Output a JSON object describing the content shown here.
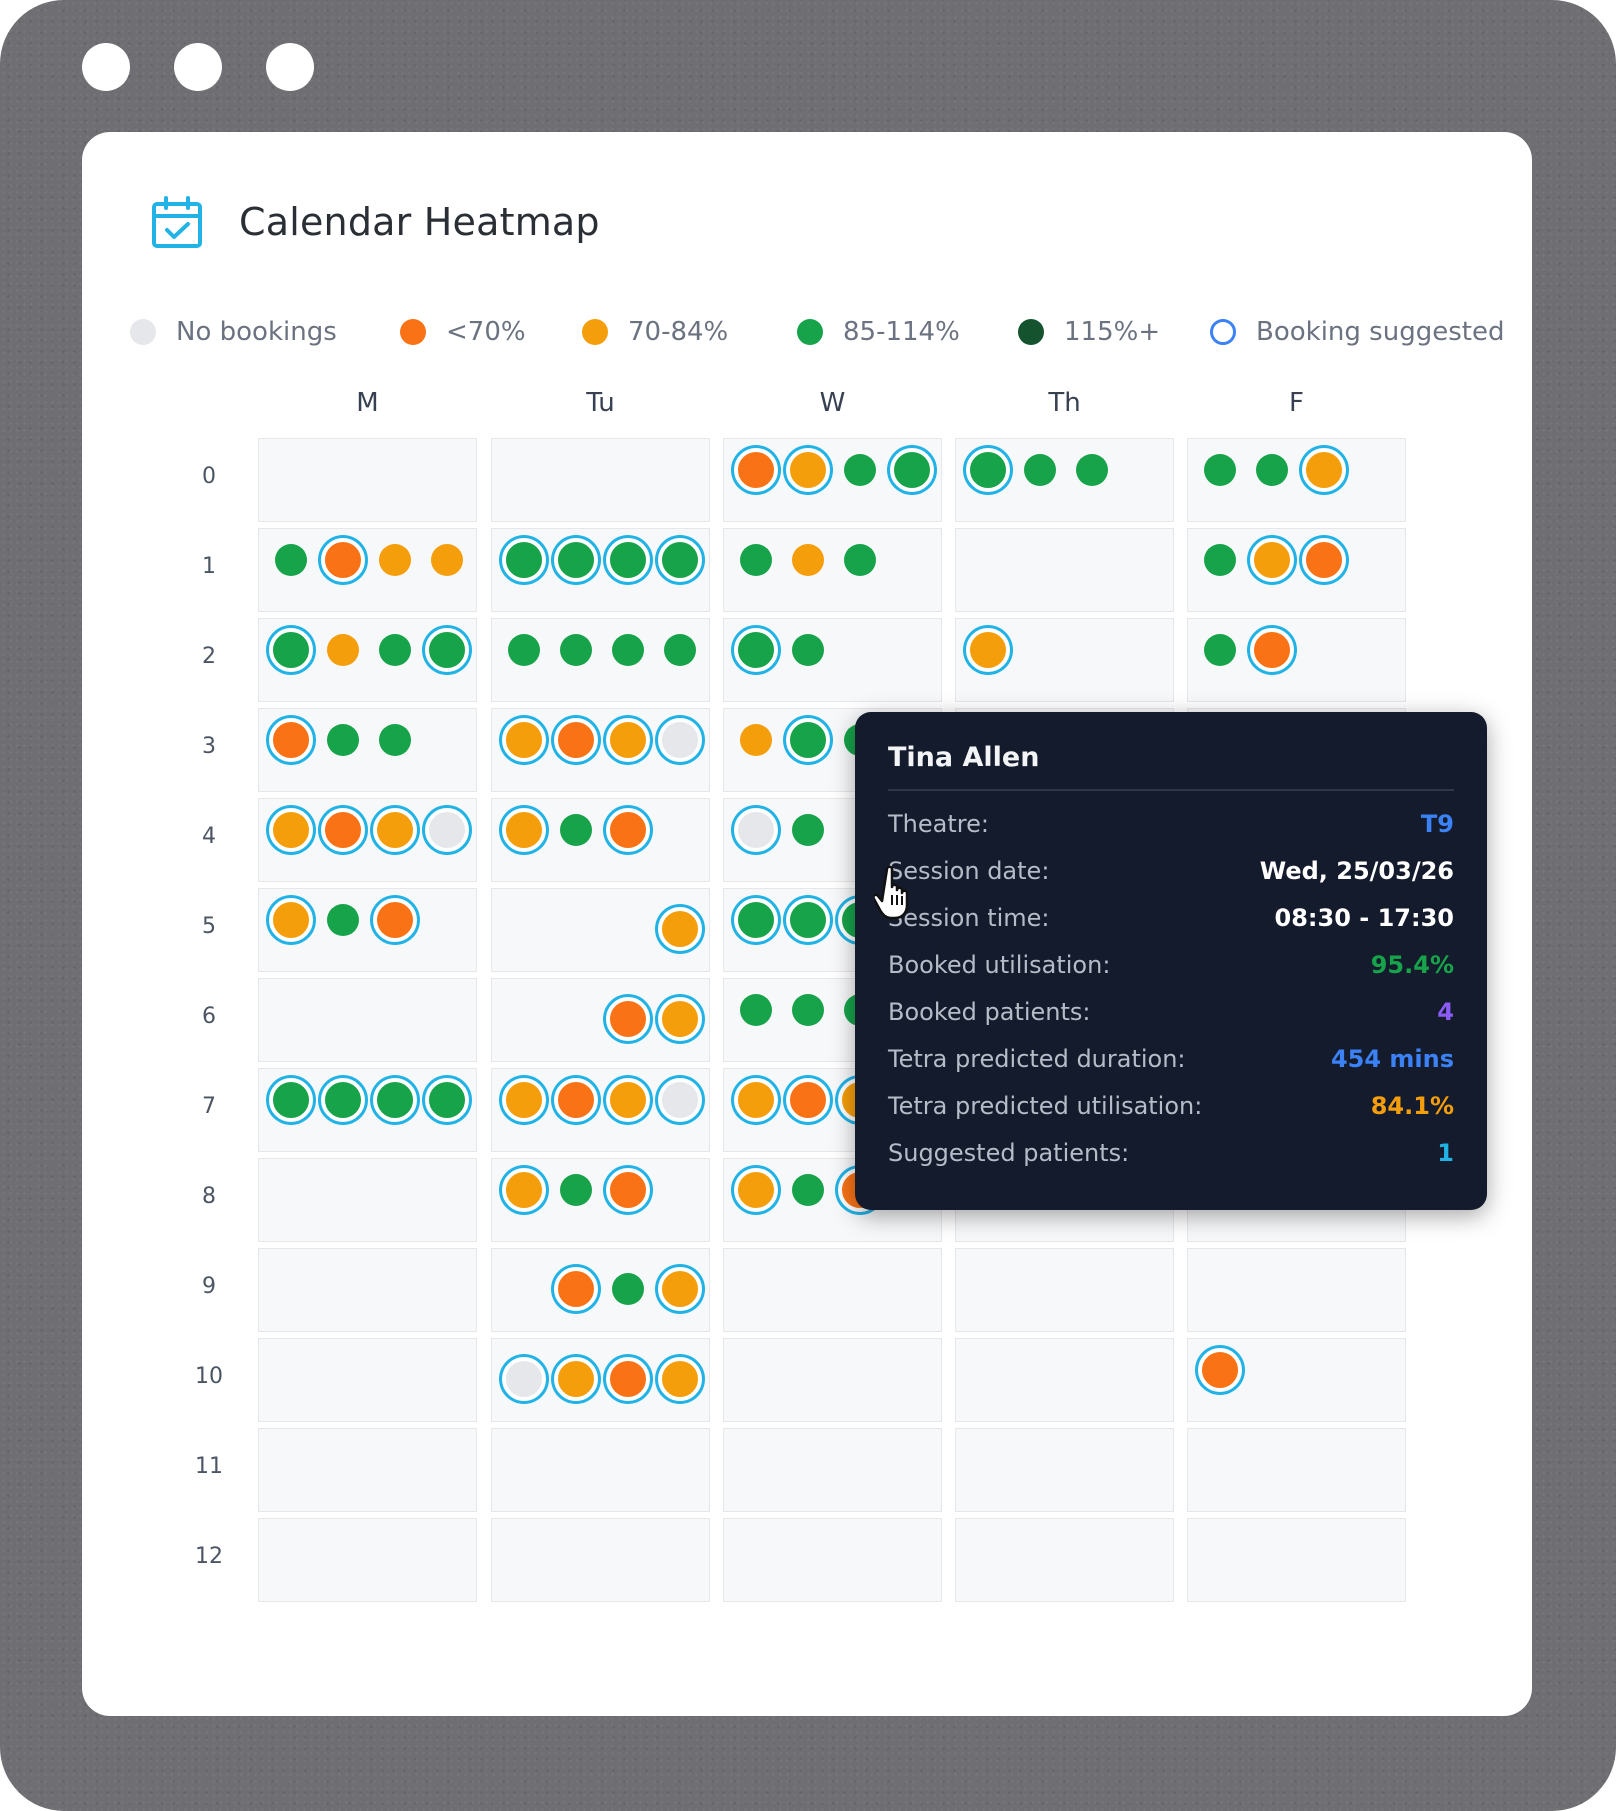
{
  "window": {
    "controls": [
      "dot-1",
      "dot-2",
      "dot-3"
    ]
  },
  "header": {
    "title": "Calendar Heatmap",
    "icon": "calendar-check-icon"
  },
  "colors": {
    "none": "#e5e7eb",
    "low": "#f97316",
    "mid": "#f59e0b",
    "good": "#16a34a",
    "over": "#14532d",
    "suggested_ring": "#3b82f6"
  },
  "legend": [
    {
      "label": "No bookings",
      "key": "none"
    },
    {
      "label": "<70%",
      "key": "low"
    },
    {
      "label": "70-84%",
      "key": "mid"
    },
    {
      "label": "85-114%",
      "key": "good"
    },
    {
      "label": "115%+",
      "key": "over"
    },
    {
      "label": "Booking suggested",
      "key": "suggested"
    }
  ],
  "days": [
    "M",
    "Tu",
    "W",
    "Th",
    "F"
  ],
  "rows": [
    "0",
    "1",
    "2",
    "3",
    "4",
    "5",
    "6",
    "7",
    "8",
    "9",
    "10",
    "11",
    "12"
  ],
  "grid": [
    [
      [],
      [],
      [
        [
          "low",
          1
        ],
        [
          "mid",
          1
        ],
        [
          "good",
          0
        ],
        [
          "good",
          1
        ]
      ],
      [
        [
          "good",
          1
        ],
        [
          "good",
          0
        ],
        [
          "good",
          0
        ]
      ],
      [
        [
          "good",
          0
        ],
        [
          "good",
          0
        ],
        [
          "mid",
          1
        ]
      ]
    ],
    [
      [
        [
          "good",
          0
        ],
        [
          "low",
          1
        ],
        [
          "mid",
          0
        ],
        [
          "mid",
          0
        ]
      ],
      [
        [
          "good",
          1
        ],
        [
          "good",
          1
        ],
        [
          "good",
          1
        ],
        [
          "good",
          1
        ]
      ],
      [
        [
          "good",
          0
        ],
        [
          "mid",
          0
        ],
        [
          "good",
          0
        ]
      ],
      [],
      [
        [
          "good",
          0
        ],
        [
          "mid",
          1
        ],
        [
          "low",
          1
        ]
      ]
    ],
    [
      [
        [
          "good",
          1
        ],
        [
          "mid",
          0
        ],
        [
          "good",
          0
        ],
        [
          "good",
          1
        ]
      ],
      [
        [
          "good",
          0
        ],
        [
          "good",
          0
        ],
        [
          "good",
          0
        ],
        [
          "good",
          0
        ]
      ],
      [
        [
          "good",
          1
        ],
        [
          "good",
          0
        ]
      ],
      [
        [
          "mid",
          1
        ]
      ],
      [
        [
          "good",
          0
        ],
        [
          "low",
          1
        ]
      ]
    ],
    [
      [
        [
          "low",
          1
        ],
        [
          "good",
          0
        ],
        [
          "good",
          0
        ]
      ],
      [
        [
          "mid",
          1
        ],
        [
          "low",
          1
        ],
        [
          "mid",
          1
        ],
        [
          "none",
          1
        ]
      ],
      [
        [
          "mid",
          0
        ],
        [
          "good",
          1
        ],
        [
          "good",
          0
        ]
      ],
      [],
      []
    ],
    [
      [
        [
          "mid",
          1
        ],
        [
          "low",
          1
        ],
        [
          "mid",
          1
        ],
        [
          "none",
          1
        ]
      ],
      [
        [
          "mid",
          1
        ],
        [
          "good",
          0
        ],
        [
          "low",
          1
        ]
      ],
      [
        [
          "none",
          1
        ],
        [
          "good",
          0
        ]
      ],
      [],
      []
    ],
    [
      [
        [
          "mid",
          1
        ],
        [
          "good",
          0
        ],
        [
          "low",
          1
        ]
      ],
      [
        [
          "_",
          0
        ],
        [
          "_",
          0
        ],
        [
          "_",
          0
        ],
        [
          "mid",
          1
        ]
      ],
      [
        [
          "good",
          1
        ],
        [
          "good",
          1
        ],
        [
          "good",
          1
        ]
      ],
      [],
      []
    ],
    [
      [],
      [
        [
          "_",
          0
        ],
        [
          "_",
          0
        ],
        [
          "low",
          1
        ],
        [
          "mid",
          1
        ]
      ],
      [
        [
          "good",
          0
        ],
        [
          "good",
          0
        ],
        [
          "good",
          0
        ]
      ],
      [],
      []
    ],
    [
      [
        [
          "good",
          1
        ],
        [
          "good",
          1
        ],
        [
          "good",
          1
        ],
        [
          "good",
          1
        ]
      ],
      [
        [
          "mid",
          1
        ],
        [
          "low",
          1
        ],
        [
          "mid",
          1
        ],
        [
          "none",
          1
        ]
      ],
      [
        [
          "mid",
          1
        ],
        [
          "low",
          1
        ],
        [
          "mid",
          1
        ]
      ],
      [],
      []
    ],
    [
      [],
      [
        [
          "mid",
          1
        ],
        [
          "good",
          0
        ],
        [
          "low",
          1
        ]
      ],
      [
        [
          "mid",
          1
        ],
        [
          "good",
          0
        ],
        [
          "low",
          1
        ]
      ],
      [],
      []
    ],
    [
      [],
      [
        [
          "_",
          0
        ],
        [
          "low",
          1
        ],
        [
          "good",
          0
        ],
        [
          "mid",
          1
        ]
      ],
      [],
      [],
      []
    ],
    [
      [],
      [
        [
          "none",
          1
        ],
        [
          "mid",
          1
        ],
        [
          "low",
          1
        ],
        [
          "mid",
          1
        ]
      ],
      [],
      [],
      [
        [
          "low",
          1
        ]
      ]
    ],
    [
      [],
      [],
      [],
      [],
      []
    ],
    [
      [],
      [],
      [],
      [],
      []
    ]
  ],
  "tooltip": {
    "name": "Tina Allen",
    "rows": [
      {
        "label": "Theatre:",
        "value": "T9",
        "color": "#3b82f6"
      },
      {
        "label": "Session date:",
        "value": "Wed, 25/03/26",
        "color": "#ffffff"
      },
      {
        "label": "Session time:",
        "value": "08:30 - 17:30",
        "color": "#ffffff"
      },
      {
        "label": "Booked utilisation:",
        "value": "95.4%",
        "color": "#16a34a"
      },
      {
        "label": "Booked patients:",
        "value": "4",
        "color": "#8b5cf6"
      },
      {
        "label": "Tetra predicted duration:",
        "value": "454 mins",
        "color": "#3b82f6"
      },
      {
        "label": "Tetra predicted utilisation:",
        "value": "84.1%",
        "color": "#f59e0b"
      },
      {
        "label": "Suggested patients:",
        "value": "1",
        "color": "#22b3e6"
      }
    ]
  }
}
